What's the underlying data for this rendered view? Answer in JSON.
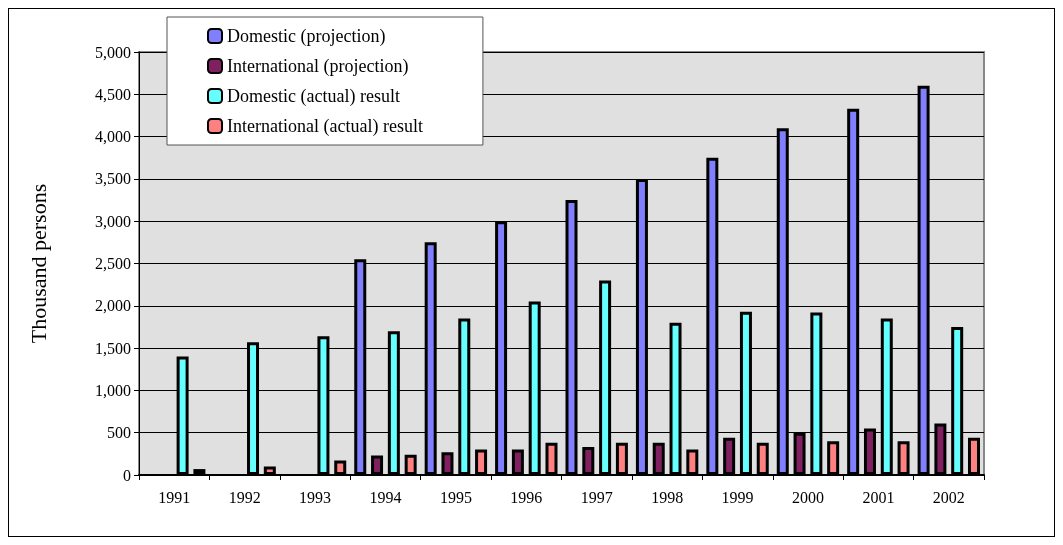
{
  "chart_data": {
    "type": "bar",
    "ylabel": "Thousand persons",
    "categories": [
      "1991",
      "1992",
      "1993",
      "1994",
      "1995",
      "1996",
      "1997",
      "1998",
      "1999",
      "2000",
      "2001",
      "2002"
    ],
    "series": [
      {
        "name": "Domestic (projection)",
        "color": "#8080ff",
        "values": [
          null,
          null,
          null,
          2550,
          2750,
          3000,
          3250,
          3500,
          3750,
          4100,
          4330,
          4600
        ]
      },
      {
        "name": "International (projection)",
        "color": "#802060",
        "values": [
          null,
          null,
          null,
          230,
          270,
          300,
          330,
          380,
          440,
          500,
          550,
          610
        ]
      },
      {
        "name": "Domestic (actual) result",
        "color": "#66ffff",
        "values": [
          1400,
          1570,
          1640,
          1700,
          1850,
          2050,
          2300,
          1800,
          1930,
          1920,
          1850,
          1750
        ]
      },
      {
        "name": "International (actual) result",
        "color": "#ff8080",
        "values": [
          70,
          100,
          170,
          240,
          300,
          380,
          380,
          300,
          380,
          400,
          400,
          440
        ]
      }
    ],
    "ylim": [
      0,
      5000
    ],
    "yticks": [
      0,
      500,
      {
        "value": 1000,
        "label": "1,000"
      },
      {
        "value": 1500,
        "label": "1,500"
      },
      {
        "value": 2000,
        "label": "2,000"
      },
      {
        "value": 2500,
        "label": "2,500"
      },
      {
        "value": 3000,
        "label": "3,000"
      },
      {
        "value": 3500,
        "label": "3,500"
      },
      {
        "value": 4000,
        "label": "4,000"
      },
      {
        "value": 4500,
        "label": "4,500"
      },
      {
        "value": 5000,
        "label": "5,000"
      }
    ],
    "grid": "y",
    "legend": "top left"
  }
}
